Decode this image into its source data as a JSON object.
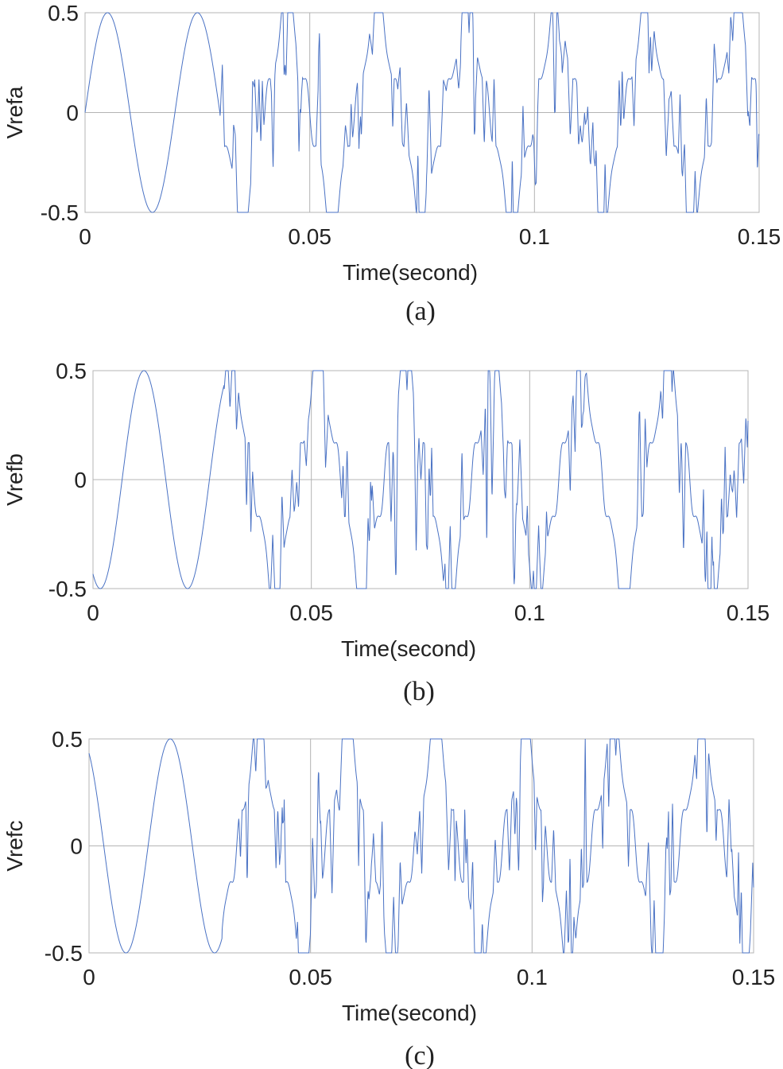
{
  "chart_data": [
    {
      "type": "line",
      "caption": "(a)",
      "xlabel": "Time(second)",
      "ylabel": "Vrefa",
      "xlim": [
        0,
        0.15
      ],
      "ylim": [
        -0.5,
        0.5
      ],
      "xticks": [
        "0",
        "0.05",
        "0.1",
        "0.15"
      ],
      "yticks": [
        "0.5",
        "0",
        "-0.5"
      ],
      "grid": true,
      "line_color": "#4a72c4",
      "fundamental_hz": 50,
      "phase_deg": 0,
      "amplitude": 0.5,
      "distorted_after_s": 0.03,
      "x": [
        0,
        0.005,
        0.01,
        0.015,
        0.02,
        0.025,
        0.03,
        0.035,
        0.04,
        0.045,
        0.05,
        0.055,
        0.06,
        0.065,
        0.07,
        0.075,
        0.08,
        0.085,
        0.09,
        0.095,
        0.1,
        0.105,
        0.11,
        0.115,
        0.12,
        0.125,
        0.13,
        0.135,
        0.14,
        0.145,
        0.15
      ],
      "y": [
        0,
        0.5,
        0,
        -0.5,
        0,
        0.5,
        0,
        -0.5,
        0,
        0.5,
        0,
        -0.5,
        0,
        0.5,
        0,
        -0.5,
        0,
        0.5,
        0,
        -0.5,
        0,
        0.5,
        0,
        -0.5,
        0,
        0.5,
        0,
        -0.5,
        0,
        0.5,
        0
      ]
    },
    {
      "type": "line",
      "caption": "(b)",
      "xlabel": "Time(second)",
      "ylabel": "Vrefb",
      "xlim": [
        0,
        0.15
      ],
      "ylim": [
        -0.5,
        0.5
      ],
      "xticks": [
        "0",
        "0.05",
        "0.1",
        "0.15"
      ],
      "yticks": [
        "0.5",
        "0",
        "-0.5"
      ],
      "grid": true,
      "line_color": "#4a72c4",
      "fundamental_hz": 50,
      "phase_deg": -120,
      "amplitude": 0.5,
      "distorted_after_s": 0.03,
      "x": [
        0,
        0.005,
        0.01,
        0.015,
        0.02,
        0.025,
        0.03,
        0.035,
        0.04,
        0.045,
        0.05
      ],
      "y": [
        -0.43,
        -0.25,
        0.43,
        0.25,
        -0.43,
        -0.25,
        0.43,
        0.25,
        -0.43,
        -0.25,
        0.43
      ]
    },
    {
      "type": "line",
      "caption": "(c)",
      "xlabel": "Time(second)",
      "ylabel": "Vrefc",
      "xlim": [
        0,
        0.15
      ],
      "ylim": [
        -0.5,
        0.5
      ],
      "xticks": [
        "0",
        "0.05",
        "0.1",
        "0.15"
      ],
      "yticks": [
        "0.5",
        "0",
        "-0.5"
      ],
      "grid": true,
      "line_color": "#4a72c4",
      "fundamental_hz": 50,
      "phase_deg": 120,
      "amplitude": 0.5,
      "distorted_after_s": 0.03,
      "x": [
        0,
        0.005,
        0.01,
        0.015,
        0.02,
        0.025,
        0.03,
        0.035,
        0.04,
        0.045,
        0.05
      ],
      "y": [
        0.43,
        -0.25,
        -0.43,
        0.25,
        0.43,
        -0.25,
        -0.43,
        0.25,
        0.43,
        -0.25,
        -0.43
      ]
    }
  ]
}
